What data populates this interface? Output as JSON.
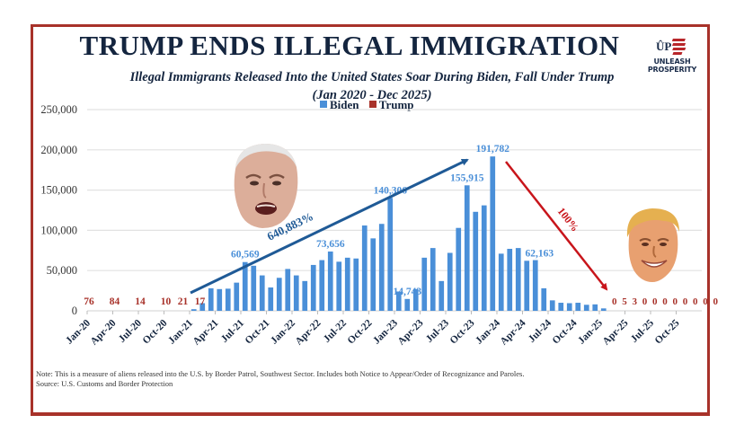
{
  "header": {
    "title": "TRUMP ENDS ILLEGAL IMMIGRATION",
    "subtitle_line1": "Illegal Immigrants Released Into the United States Soar During Biden, Fall Under Trump",
    "subtitle_line2": "(Jan 2020 - Dec 2025)",
    "logo_mark": "ÛP",
    "logo_text": "UNLEASH PROSPERITY"
  },
  "legend": [
    {
      "name": "Biden",
      "color": "#4a8fd8"
    },
    {
      "name": "Trump",
      "color": "#a8322a"
    }
  ],
  "footer": {
    "note": "Note: This is a measure of aliens released into the U.S. by Border Patrol, Southwest Sector. Includes both Notice to Appear/Order of Recognizance and Paroles.",
    "source": "Source: U.S. Customs and Border Protection"
  },
  "images": {
    "biden_photo": "biden-face",
    "trump_photo": "trump-face"
  },
  "chart_data": {
    "type": "bar",
    "title": "TRUMP ENDS ILLEGAL IMMIGRATION",
    "subtitle": "Illegal Immigrants Released Into the United States Soar During Biden, Fall Under Trump (Jan 2020 - Dec 2025)",
    "xlabel": "",
    "ylabel": "",
    "ylim": [
      0,
      250000
    ],
    "yticks": [
      0,
      50000,
      100000,
      150000,
      200000,
      250000
    ],
    "ytick_labels": [
      "0",
      "50,000",
      "100,000",
      "150,000",
      "200,000",
      "250,000"
    ],
    "grid": true,
    "legend_position": "top-center",
    "xtick_labels": [
      "Jan-20",
      "Apr-20",
      "Jul-20",
      "Oct-20",
      "Jan-21",
      "Apr-21",
      "Jul-21",
      "Oct-21",
      "Jan-22",
      "Apr-22",
      "Jul-22",
      "Oct-22",
      "Jan-23",
      "Apr-23",
      "Jul-23",
      "Oct-23",
      "Jan-24",
      "Apr-24",
      "Jul-24",
      "Oct-24",
      "Jan-25",
      "Apr-25",
      "Jul-25",
      "Oct-25"
    ],
    "categories": [
      "Jan-20",
      "Feb-20",
      "Mar-20",
      "Apr-20",
      "May-20",
      "Jun-20",
      "Jul-20",
      "Aug-20",
      "Sep-20",
      "Oct-20",
      "Nov-20",
      "Dec-20",
      "Jan-21",
      "Feb-21",
      "Mar-21",
      "Apr-21",
      "May-21",
      "Jun-21",
      "Jul-21",
      "Aug-21",
      "Sep-21",
      "Oct-21",
      "Nov-21",
      "Dec-21",
      "Jan-22",
      "Feb-22",
      "Mar-22",
      "Apr-22",
      "May-22",
      "Jun-22",
      "Jul-22",
      "Aug-22",
      "Sep-22",
      "Oct-22",
      "Nov-22",
      "Dec-22",
      "Jan-23",
      "Feb-23",
      "Mar-23",
      "Apr-23",
      "May-23",
      "Jun-23",
      "Jul-23",
      "Aug-23",
      "Sep-23",
      "Oct-23",
      "Nov-23",
      "Dec-23",
      "Jan-24",
      "Feb-24",
      "Mar-24",
      "Apr-24",
      "May-24",
      "Jun-24",
      "Jul-24",
      "Aug-24",
      "Sep-24",
      "Oct-24",
      "Nov-24",
      "Dec-24",
      "Jan-25",
      "Feb-25",
      "Mar-25",
      "Apr-25",
      "May-25",
      "Jun-25",
      "Jul-25",
      "Aug-25",
      "Sep-25",
      "Oct-25",
      "Nov-25",
      "Dec-25"
    ],
    "series": [
      {
        "name": "Trump",
        "color": "#a8322a",
        "values": [
          76,
          84,
          null,
          null,
          null,
          null,
          14,
          10,
          21,
          17,
          null,
          null,
          null,
          null,
          null,
          null,
          null,
          null,
          null,
          null,
          null,
          null,
          null,
          null,
          null,
          null,
          null,
          null,
          null,
          null,
          null,
          null,
          null,
          null,
          null,
          null,
          null,
          null,
          null,
          null,
          null,
          null,
          null,
          null,
          null,
          null,
          null,
          null,
          null,
          null,
          null,
          null,
          null,
          null,
          null,
          null,
          null,
          null,
          null,
          null,
          null,
          0,
          5,
          3,
          0,
          0,
          0,
          0,
          0,
          0,
          0,
          0
        ],
        "labels": [
          {
            "index": 0,
            "text": "76"
          },
          {
            "index": 3,
            "text": "84"
          },
          {
            "index": 6,
            "text": "14"
          },
          {
            "index": 9,
            "text": "10"
          },
          {
            "index": 11,
            "text": "21"
          },
          {
            "index": 13,
            "text": "17"
          }
        ],
        "label_2025": "0 5 3 0 0 0 0 0 0 0 0"
      },
      {
        "name": "Biden",
        "color": "#4a8fd8",
        "values": [
          null,
          null,
          null,
          null,
          null,
          null,
          null,
          null,
          null,
          null,
          null,
          null,
          2000,
          9500,
          28000,
          27000,
          27500,
          35000,
          60569,
          56000,
          44000,
          29000,
          41000,
          52000,
          44000,
          37000,
          57000,
          63000,
          73656,
          61000,
          66000,
          65000,
          106000,
          90000,
          108000,
          140306,
          24000,
          14743,
          27000,
          66000,
          78000,
          37000,
          72000,
          103000,
          155915,
          123000,
          131000,
          191782,
          71000,
          77000,
          78000,
          62163,
          63000,
          28000,
          13000,
          10000,
          9500,
          10000,
          7500,
          8000,
          3000,
          null,
          null,
          null,
          null,
          null,
          null,
          null,
          null,
          null,
          null,
          null
        ],
        "labels": [
          {
            "index": 18,
            "text": "60,569"
          },
          {
            "index": 28,
            "text": "73,656"
          },
          {
            "index": 35,
            "text": "140,306"
          },
          {
            "index": 37,
            "text": "14,743"
          },
          {
            "index": 44,
            "text": "155,915"
          },
          {
            "index": 47,
            "text": "191,782"
          },
          {
            "index": 51,
            "text": "62,163"
          }
        ]
      }
    ],
    "annotations": [
      {
        "text": "640,883%",
        "type": "arrow-up",
        "color": "#1f5a96",
        "from": "Jan-21",
        "to": "Oct-23"
      },
      {
        "text": "100%",
        "type": "arrow-down",
        "color": "#c8151b",
        "from": "Jan-24",
        "to": "Mar-25"
      }
    ]
  }
}
